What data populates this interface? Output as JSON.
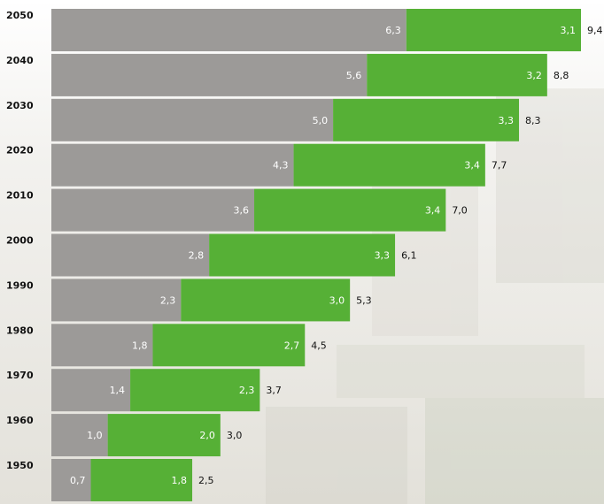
{
  "chart_data": {
    "type": "stacked-bar-horizontal",
    "categories": [
      "2050",
      "2040",
      "2030",
      "2020",
      "2010",
      "2000",
      "1990",
      "1980",
      "1970",
      "1960",
      "1950"
    ],
    "series": [
      {
        "color": "#9c9a98",
        "values": [
          6.3,
          5.6,
          5.0,
          4.3,
          3.6,
          2.8,
          2.3,
          1.8,
          1.4,
          1.0,
          0.7
        ],
        "value_labels": [
          "6,3",
          "5,6",
          "5,0",
          "4,3",
          "3,6",
          "2,8",
          "2,3",
          "1,8",
          "1,4",
          "1,0",
          "0,7"
        ]
      },
      {
        "color": "#56b036",
        "values": [
          3.1,
          3.2,
          3.3,
          3.4,
          3.4,
          3.3,
          3.0,
          2.7,
          2.3,
          2.0,
          1.8
        ],
        "value_labels": [
          "3,1",
          "3,2",
          "3,3",
          "3,4",
          "3,4",
          "3,3",
          "3,0",
          "2,7",
          "2,3",
          "2,0",
          "1,8"
        ]
      }
    ],
    "totals": {
      "values": [
        9.4,
        8.8,
        8.3,
        7.7,
        7.0,
        6.1,
        5.3,
        4.5,
        3.7,
        3.0,
        2.5
      ],
      "value_labels": [
        "9,4",
        "8,8",
        "8,3",
        "7,7",
        "7,0",
        "6,1",
        "5,3",
        "4,5",
        "3,7",
        "3,0",
        "2,5"
      ]
    }
  }
}
